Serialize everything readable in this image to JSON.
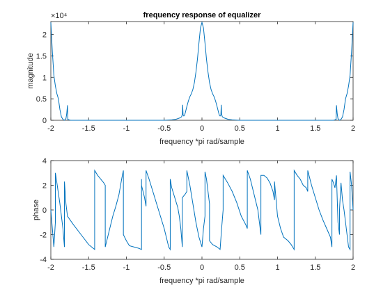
{
  "chart_data": [
    {
      "type": "line",
      "title": "frequency response of equalizer",
      "xlabel": "frequency *pi rad/sample",
      "ylabel": "magnitude",
      "exponent_label": "×10⁴",
      "xlim": [
        -2,
        2
      ],
      "ylim": [
        0,
        2.3
      ],
      "yscale_factor": 10000,
      "xticks": [
        "-2",
        "-1.5",
        "-1",
        "-0.5",
        "0",
        "0.5",
        "1",
        "1.5",
        "2"
      ],
      "yticks": [
        "0",
        "0.5",
        "1",
        "1.5",
        "2"
      ],
      "grid": false,
      "color": "#0072BD",
      "series": [
        {
          "x": [
            -2.0,
            -1.98,
            -1.96,
            -1.94,
            -1.92,
            -1.9,
            -1.88,
            -1.86,
            -1.84,
            -1.82,
            -1.8,
            -1.79,
            -1.78,
            -1.775,
            -1.77,
            -1.76,
            -1.74,
            -1.7,
            -1.6,
            -1.5,
            -1.4,
            -1.3,
            -1.2,
            -1.1,
            -1.0,
            -0.9,
            -0.8,
            -0.7,
            -0.6,
            -0.5,
            -0.4,
            -0.35,
            -0.3,
            -0.27,
            -0.26,
            -0.255,
            -0.25,
            -0.24,
            -0.23,
            -0.22,
            -0.2,
            -0.18,
            -0.16,
            -0.14,
            -0.12,
            -0.1,
            -0.08,
            -0.06,
            -0.04,
            -0.02,
            0.0,
            0.02,
            0.04,
            0.06,
            0.08,
            0.1,
            0.12,
            0.14,
            0.16,
            0.18,
            0.2,
            0.22,
            0.23,
            0.24,
            0.25,
            0.255,
            0.26,
            0.27,
            0.3,
            0.35,
            0.4,
            0.5,
            0.6,
            0.7,
            0.8,
            0.9,
            1.0,
            1.1,
            1.2,
            1.3,
            1.4,
            1.5,
            1.6,
            1.7,
            1.74,
            1.76,
            1.77,
            1.775,
            1.78,
            1.79,
            1.8,
            1.82,
            1.84,
            1.86,
            1.88,
            1.9,
            1.92,
            1.94,
            1.96,
            1.98,
            2.0
          ],
          "y": [
            2.28,
            1.6,
            1.05,
            0.8,
            0.62,
            0.5,
            0.25,
            0.08,
            0.02,
            0.0,
            0.04,
            0.15,
            0.35,
            0.0,
            0.02,
            0.01,
            0.0,
            0.0,
            0.0,
            0.0,
            0.0,
            0.0,
            0.0,
            0.0,
            0.0,
            0.0,
            0.0,
            0.0,
            0.0,
            0.0,
            0.01,
            0.02,
            0.05,
            0.08,
            0.14,
            0.36,
            0.12,
            0.1,
            0.12,
            0.18,
            0.32,
            0.45,
            0.55,
            0.62,
            0.72,
            0.88,
            1.12,
            1.42,
            1.8,
            2.15,
            2.28,
            2.15,
            1.8,
            1.42,
            1.12,
            0.88,
            0.72,
            0.62,
            0.55,
            0.45,
            0.32,
            0.18,
            0.12,
            0.1,
            0.12,
            0.36,
            0.14,
            0.08,
            0.05,
            0.02,
            0.01,
            0.0,
            0.0,
            0.0,
            0.0,
            0.0,
            0.0,
            0.0,
            0.0,
            0.0,
            0.0,
            0.0,
            0.0,
            0.0,
            0.0,
            0.01,
            0.02,
            0.0,
            0.35,
            0.15,
            0.04,
            0.0,
            0.02,
            0.08,
            0.25,
            0.5,
            0.62,
            0.8,
            1.05,
            1.6,
            2.28
          ]
        }
      ]
    },
    {
      "type": "line",
      "title": "",
      "xlabel": "frequency *pi rad/sample",
      "ylabel": "phase",
      "xlim": [
        -2,
        2
      ],
      "ylim": [
        -4,
        4
      ],
      "xticks": [
        "-2",
        "-1.5",
        "-1",
        "-0.5",
        "0",
        "0.5",
        "1",
        "1.5",
        "2"
      ],
      "yticks": [
        "-4",
        "-2",
        "0",
        "2",
        "4"
      ],
      "grid": false,
      "color": "#0072BD",
      "series": [
        {
          "x": [
            -2.0,
            -1.98,
            -1.96,
            -1.94,
            -1.94,
            -1.92,
            -1.88,
            -1.84,
            -1.82,
            -1.82,
            -1.82,
            -1.8,
            -1.78,
            -1.7,
            -1.6,
            -1.5,
            -1.42,
            -1.42,
            -1.38,
            -1.3,
            -1.28,
            -1.28,
            -1.26,
            -1.22,
            -1.18,
            -1.14,
            -1.1,
            -1.06,
            -1.04,
            -1.04,
            -1.0,
            -0.96,
            -0.9,
            -0.84,
            -0.8,
            -0.8,
            -0.8,
            -0.76,
            -0.74,
            -0.74,
            -0.7,
            -0.65,
            -0.6,
            -0.55,
            -0.5,
            -0.46,
            -0.44,
            -0.42,
            -0.42,
            -0.4,
            -0.36,
            -0.32,
            -0.3,
            -0.28,
            -0.26,
            -0.26,
            -0.26,
            -0.22,
            -0.2,
            -0.2,
            -0.16,
            -0.12,
            -0.08,
            -0.04,
            0.0,
            0.02,
            0.04,
            0.04,
            0.06,
            0.08,
            0.1,
            0.1,
            0.14,
            0.2,
            0.24,
            0.26,
            0.28,
            0.28,
            0.3,
            0.34,
            0.4,
            0.46,
            0.52,
            0.58,
            0.6,
            0.6,
            0.64,
            0.7,
            0.74,
            0.76,
            0.78,
            0.78,
            0.82,
            0.86,
            0.9,
            0.94,
            0.96,
            0.96,
            1.0,
            1.04,
            1.08,
            1.14,
            1.18,
            1.2,
            1.22,
            1.22,
            1.26,
            1.3,
            1.34,
            1.38,
            1.4,
            1.4,
            1.45,
            1.5,
            1.55,
            1.6,
            1.65,
            1.7,
            1.72,
            1.72,
            1.74,
            1.76,
            1.78,
            1.8,
            1.82,
            1.82,
            1.84,
            1.86,
            1.88,
            1.9,
            1.92,
            1.94,
            1.96,
            1.96,
            1.98,
            2.0
          ],
          "y": [
            0.0,
            -1.5,
            -3.0,
            -1.0,
            3.0,
            2.2,
            0.5,
            -1.5,
            -3.0,
            0.0,
            2.3,
            0.5,
            -0.5,
            -1.2,
            -2.0,
            -2.8,
            -3.2,
            3.2,
            2.8,
            2.2,
            2.0,
            -3.0,
            -2.5,
            -1.5,
            -0.5,
            0.3,
            1.2,
            2.6,
            3.2,
            -2.0,
            -2.5,
            -2.9,
            -3.0,
            -3.1,
            -3.2,
            2.5,
            2.0,
            1.0,
            0.3,
            3.2,
            2.5,
            1.5,
            0.5,
            -0.5,
            -1.5,
            -2.5,
            -3.0,
            -3.2,
            2.5,
            1.8,
            1.0,
            0.2,
            -0.5,
            -1.5,
            -3.0,
            0.0,
            1.0,
            1.3,
            1.5,
            3.2,
            2.0,
            0.5,
            -1.0,
            -2.2,
            -3.0,
            -1.5,
            -0.5,
            3.1,
            2.5,
            1.5,
            0.5,
            -2.5,
            -2.8,
            -3.0,
            -3.2,
            -1.5,
            0.0,
            2.8,
            2.6,
            2.2,
            1.5,
            0.6,
            -0.5,
            -1.2,
            -1.5,
            3.2,
            2.5,
            1.0,
            0.0,
            -1.0,
            -2.0,
            2.8,
            2.8,
            2.6,
            2.2,
            1.5,
            0.8,
            2.3,
            -0.5,
            -1.5,
            -2.2,
            -2.5,
            -2.8,
            -3.0,
            -3.2,
            3.2,
            2.8,
            2.5,
            2.0,
            1.8,
            1.5,
            3.2,
            2.0,
            1.0,
            0.0,
            -0.8,
            -1.5,
            -2.2,
            -3.0,
            2.5,
            2.2,
            1.8,
            2.8,
            -1.0,
            -2.0,
            0.0,
            2.2,
            0.8,
            0.0,
            -1.0,
            -2.0,
            -3.0,
            -3.2,
            3.1,
            2.0,
            0.0
          ]
        }
      ]
    }
  ]
}
